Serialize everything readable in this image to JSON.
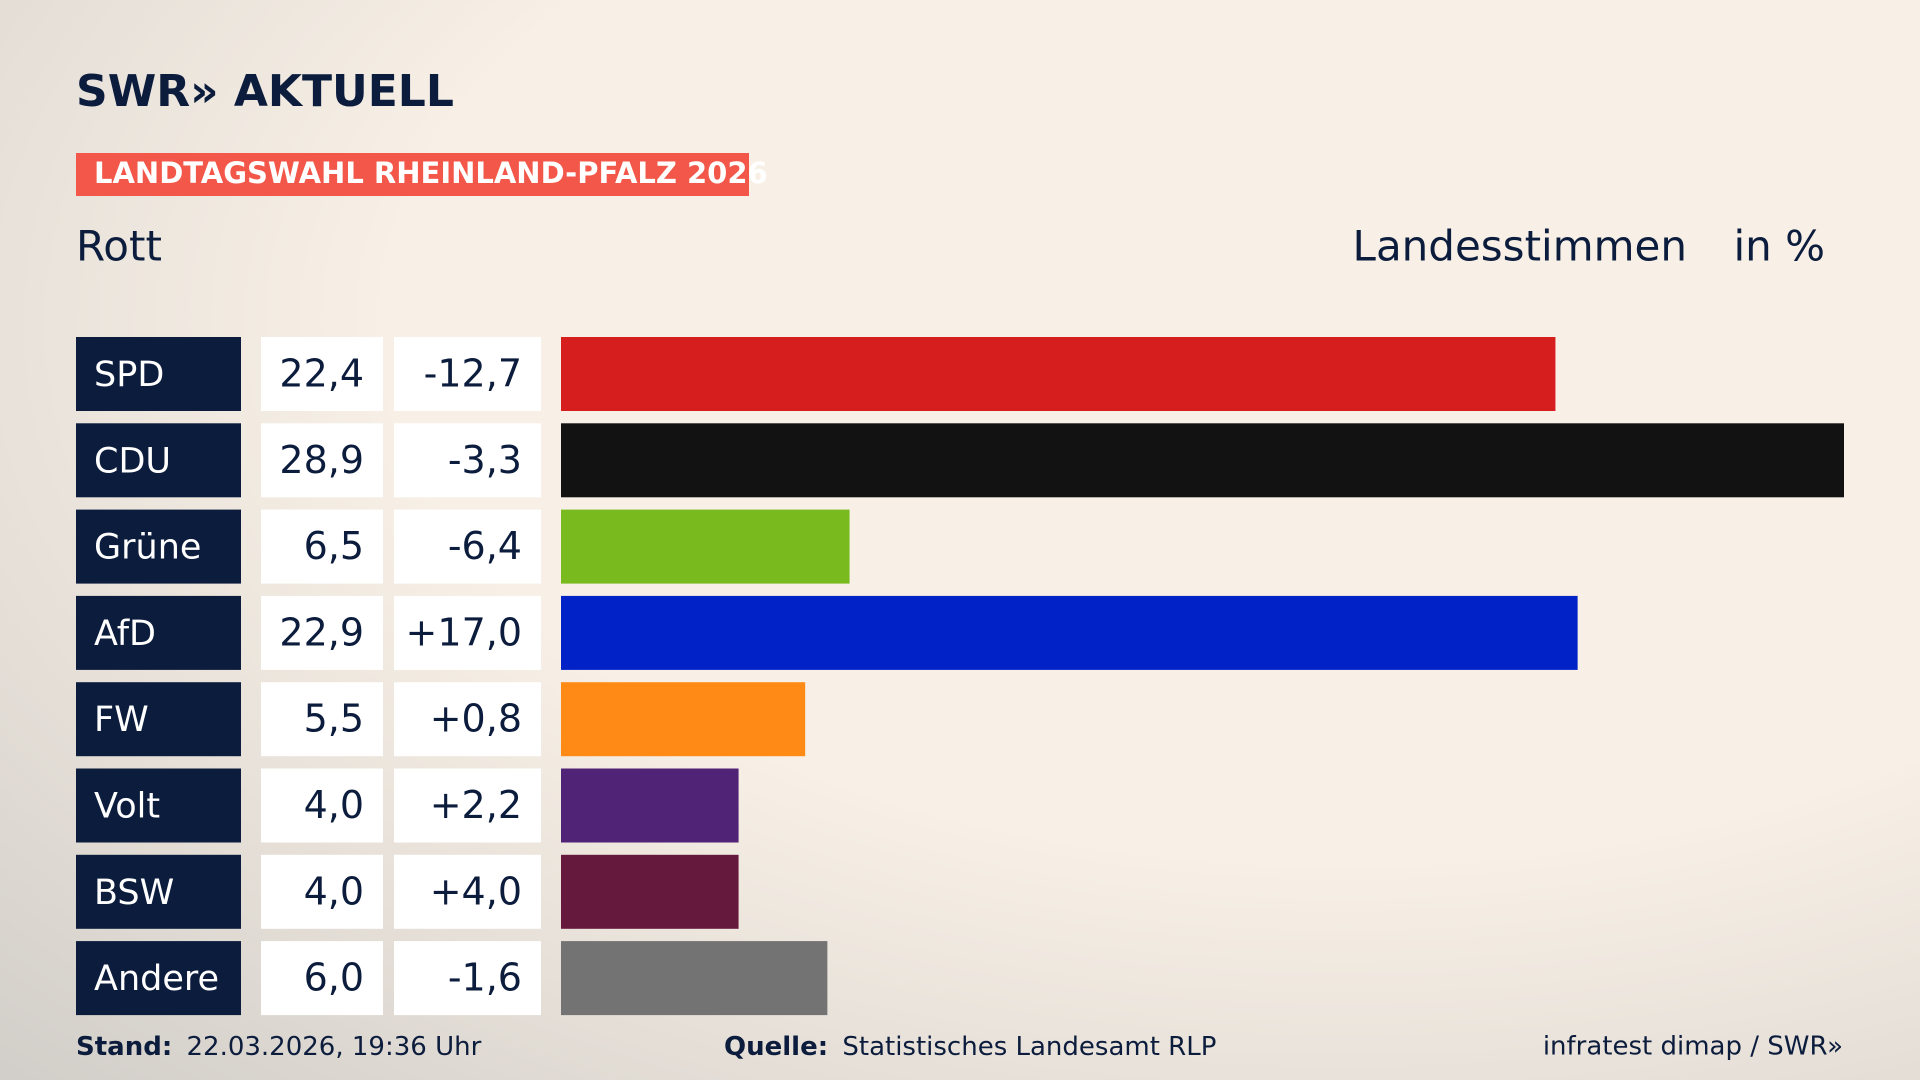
{
  "header": {
    "brand": "SWR» AKTUELL",
    "badge": "LANDTAGSWAHL RHEINLAND-PFALZ 2026"
  },
  "chart_data": {
    "type": "bar",
    "title": "Rott",
    "subtitle": "Landesstimmen",
    "unit_label": "in %",
    "categories": [
      "SPD",
      "CDU",
      "Grüne",
      "AfD",
      "FW",
      "Volt",
      "BSW",
      "Andere"
    ],
    "values": [
      22.4,
      28.9,
      6.5,
      22.9,
      5.5,
      4.0,
      4.0,
      6.0
    ],
    "value_labels": [
      "22,4",
      "28,9",
      "6,5",
      "22,9",
      "5,5",
      "4,0",
      "4,0",
      "6,0"
    ],
    "changes": [
      -12.7,
      -3.3,
      -6.4,
      17.0,
      0.8,
      2.2,
      4.0,
      -1.6
    ],
    "change_labels": [
      "-12,7",
      "-3,3",
      "-6,4",
      "+17,0",
      "+0,8",
      "+2,2",
      "+4,0",
      "-1,6"
    ],
    "colors": [
      "#d61e1e",
      "#121212",
      "#79bb1e",
      "#0022c6",
      "#ff8b16",
      "#512377",
      "#65193c",
      "#737373"
    ]
  },
  "footer": {
    "stand_label": "Stand:",
    "stand": "22.03.2026, 19:36 Uhr",
    "source_label": "Quelle:",
    "source": "Statistisches Landesamt RLP",
    "credit": "infratest dimap / SWR»"
  }
}
